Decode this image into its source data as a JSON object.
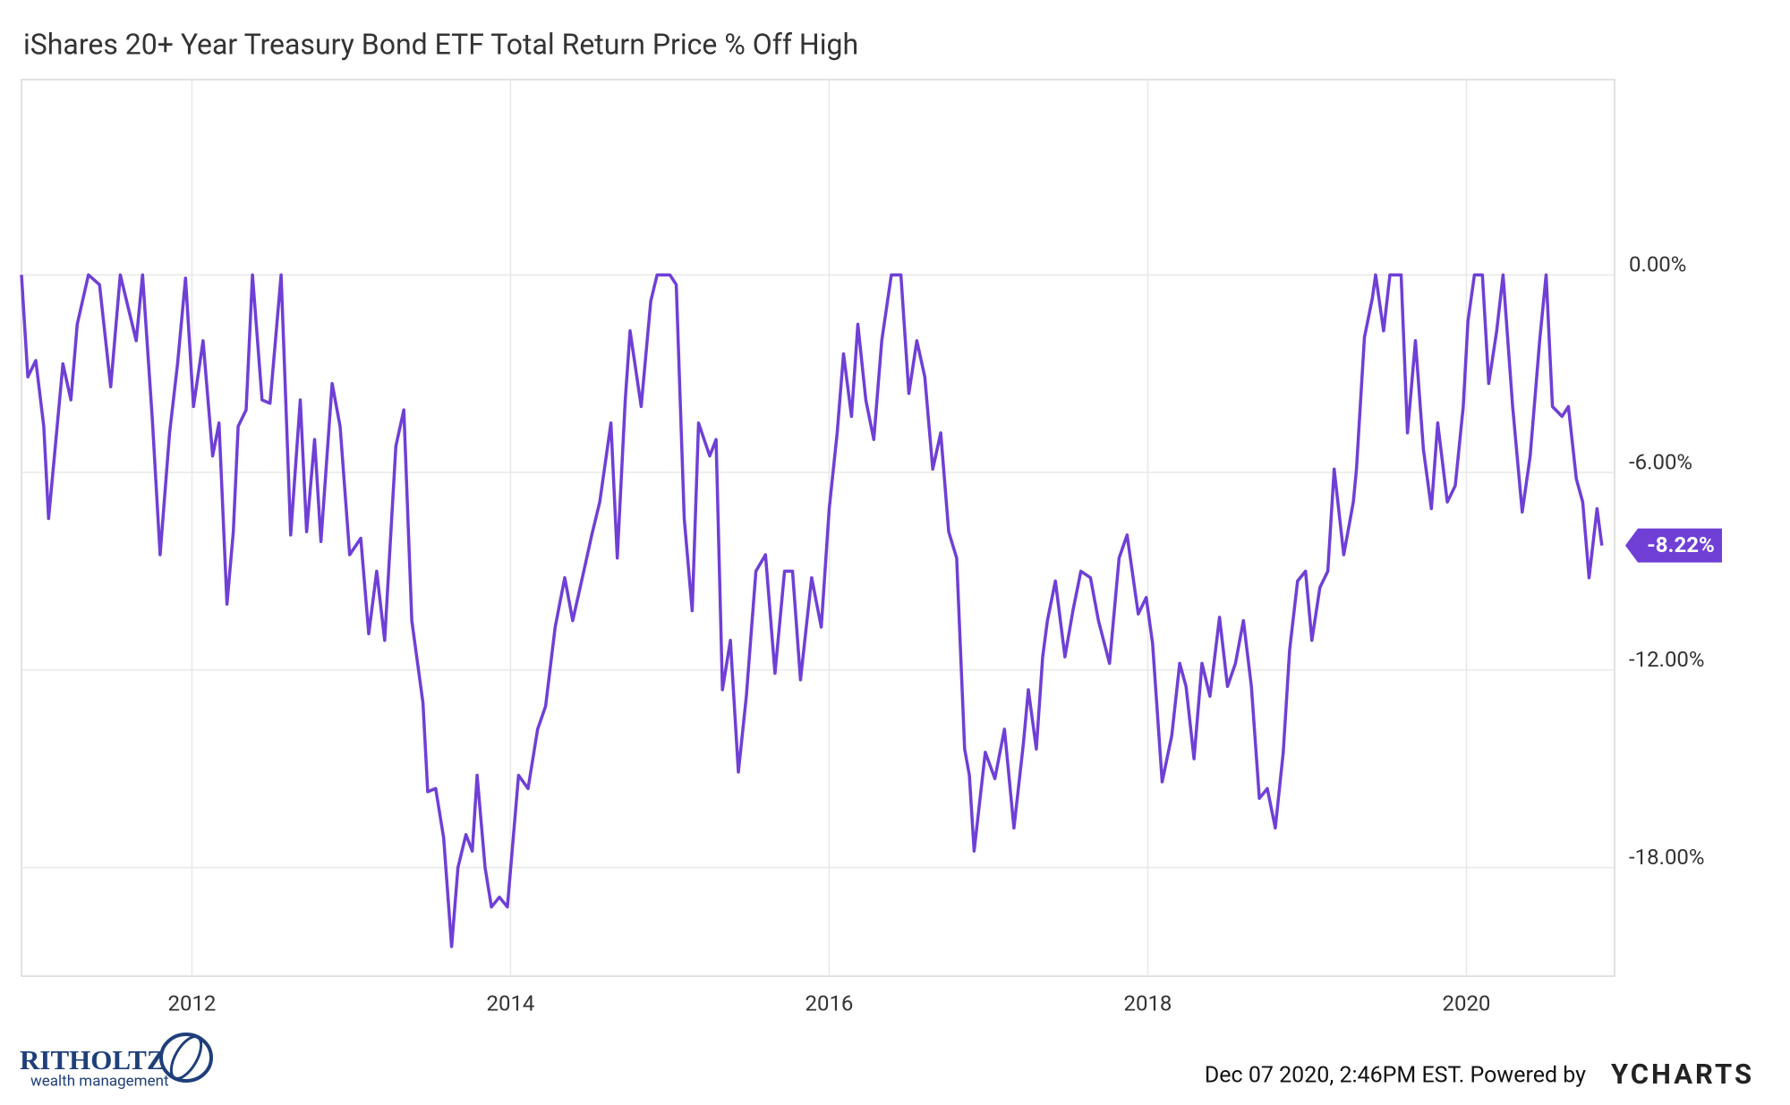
{
  "chart_data": {
    "type": "line",
    "title": "iShares 20+ Year Treasury Bond ETF Total Return Price % Off High",
    "xlim": [
      2010.93,
      2020.93
    ],
    "xticks": [
      2012,
      2014,
      2016,
      2018,
      2020
    ],
    "ylim": [
      -21.3,
      5.93
    ],
    "yticks": [
      {
        "value": 0,
        "label": "0.00%"
      },
      {
        "value": -6,
        "label": "-6.00%"
      },
      {
        "value": -12,
        "label": "-12.00%"
      },
      {
        "value": -18,
        "label": "-18.00%"
      }
    ],
    "grid": true,
    "end_label": "-8.22%",
    "x": [
      2010.93,
      2010.97,
      2011.02,
      2011.07,
      2011.1,
      2011.15,
      2011.19,
      2011.24,
      2011.28,
      2011.35,
      2011.42,
      2011.49,
      2011.55,
      2011.65,
      2011.69,
      2011.75,
      2011.8,
      2011.86,
      2011.91,
      2011.96,
      2012.01,
      2012.07,
      2012.13,
      2012.17,
      2012.22,
      2012.26,
      2012.29,
      2012.34,
      2012.38,
      2012.44,
      2012.49,
      2012.56,
      2012.62,
      2012.68,
      2012.72,
      2012.77,
      2012.81,
      2012.88,
      2012.93,
      2012.99,
      2013.06,
      2013.11,
      2013.16,
      2013.21,
      2013.28,
      2013.33,
      2013.38,
      2013.45,
      2013.48,
      2013.53,
      2013.58,
      2013.63,
      2013.67,
      2013.72,
      2013.76,
      2013.79,
      2013.84,
      2013.88,
      2013.93,
      2013.98,
      2014.05,
      2014.11,
      2014.17,
      2014.22,
      2014.28,
      2014.34,
      2014.39,
      2014.46,
      2014.51,
      2014.56,
      2014.63,
      2014.67,
      2014.72,
      2014.75,
      2014.82,
      2014.88,
      2014.92,
      2015.0,
      2015.04,
      2015.09,
      2015.14,
      2015.18,
      2015.25,
      2015.29,
      2015.33,
      2015.38,
      2015.43,
      2015.48,
      2015.54,
      2015.6,
      2015.66,
      2015.72,
      2015.77,
      2015.82,
      2015.89,
      2015.95,
      2016.0,
      2016.05,
      2016.09,
      2016.14,
      2016.18,
      2016.23,
      2016.28,
      2016.33,
      2016.39,
      2016.45,
      2016.5,
      2016.55,
      2016.6,
      2016.65,
      2016.7,
      2016.75,
      2016.8,
      2016.85,
      2016.88,
      2016.91,
      2016.98,
      2017.04,
      2017.1,
      2017.16,
      2017.22,
      2017.25,
      2017.3,
      2017.34,
      2017.37,
      2017.42,
      2017.48,
      2017.53,
      2017.58,
      2017.64,
      2017.69,
      2017.76,
      2017.82,
      2017.87,
      2017.94,
      2017.99,
      2018.03,
      2018.09,
      2018.15,
      2018.2,
      2018.24,
      2018.29,
      2018.34,
      2018.39,
      2018.45,
      2018.5,
      2018.55,
      2018.6,
      2018.65,
      2018.7,
      2018.75,
      2018.8,
      2018.85,
      2018.89,
      2018.94,
      2018.99,
      2019.03,
      2019.08,
      2019.13,
      2019.17,
      2019.23,
      2019.29,
      2019.31,
      2019.36,
      2019.41,
      2019.43,
      2019.48,
      2019.52,
      2019.59,
      2019.63,
      2019.68,
      2019.73,
      2019.78,
      2019.82,
      2019.88,
      2019.93,
      2019.98,
      2020.01,
      2020.05,
      2020.1,
      2020.14,
      2020.19,
      2020.23,
      2020.29,
      2020.35,
      2020.4,
      2020.46,
      2020.5,
      2020.54,
      2020.6,
      2020.64,
      2020.69,
      2020.73,
      2020.77,
      2020.82,
      2020.85
    ],
    "series": [
      {
        "name": "iShares 20+ Year Treasury Bond ETF Total Return Price % Off High",
        "color": "#6f3fd6",
        "values": [
          0,
          -3.1,
          -2.6,
          -4.6,
          -7.4,
          -4.8,
          -2.7,
          -3.8,
          -1.5,
          0,
          -0.3,
          -3.4,
          0,
          -2.0,
          0,
          -4.3,
          -8.5,
          -4.8,
          -2.7,
          -0.1,
          -4.0,
          -2.0,
          -5.5,
          -4.5,
          -10.0,
          -7.8,
          -4.6,
          -4.1,
          0,
          -3.8,
          -3.9,
          0,
          -7.9,
          -3.8,
          -7.8,
          -5.0,
          -8.1,
          -3.3,
          -4.6,
          -8.5,
          -8.0,
          -10.9,
          -9.0,
          -11.1,
          -5.2,
          -4.1,
          -10.5,
          -13.0,
          -15.7,
          -15.6,
          -17.1,
          -20.4,
          -18.0,
          -17.0,
          -17.5,
          -15.2,
          -18.0,
          -19.2,
          -18.9,
          -19.2,
          -15.2,
          -15.6,
          -13.8,
          -13.1,
          -10.7,
          -9.2,
          -10.5,
          -9.0,
          -7.9,
          -6.9,
          -4.5,
          -8.6,
          -3.8,
          -1.7,
          -4.0,
          -0.8,
          0,
          0,
          -0.3,
          -7.4,
          -10.2,
          -4.5,
          -5.5,
          -5.0,
          -12.6,
          -11.1,
          -15.1,
          -12.8,
          -9.0,
          -8.5,
          -12.1,
          -9.0,
          -9.0,
          -12.3,
          -9.2,
          -10.7,
          -7.1,
          -4.8,
          -2.4,
          -4.3,
          -1.5,
          -3.8,
          -5.0,
          -2.0,
          0,
          0,
          -3.6,
          -2.0,
          -3.1,
          -5.9,
          -4.8,
          -7.8,
          -8.6,
          -14.4,
          -15.2,
          -17.5,
          -14.5,
          -15.3,
          -13.8,
          -16.8,
          -14.2,
          -12.6,
          -14.4,
          -11.6,
          -10.5,
          -9.3,
          -11.6,
          -10.2,
          -9.0,
          -9.2,
          -10.5,
          -11.8,
          -8.6,
          -7.9,
          -10.3,
          -9.8,
          -11.2,
          -15.4,
          -14.0,
          -11.8,
          -12.5,
          -14.7,
          -11.8,
          -12.8,
          -10.4,
          -12.5,
          -11.8,
          -10.5,
          -12.5,
          -15.9,
          -15.6,
          -16.8,
          -14.5,
          -11.4,
          -9.3,
          -9.0,
          -11.1,
          -9.5,
          -9.0,
          -5.9,
          -8.5,
          -6.9,
          -5.9,
          -1.9,
          -0.7,
          0,
          -1.7,
          0,
          0,
          -4.8,
          -2.0,
          -5.3,
          -7.1,
          -4.5,
          -6.9,
          -6.4,
          -4.0,
          -1.4,
          0,
          0,
          -3.3,
          -1.7,
          0,
          -4.0,
          -7.2,
          -5.5,
          -2.0,
          0,
          -4.0,
          -4.3,
          -4.0,
          -6.2,
          -6.9,
          -9.2,
          -7.1,
          -8.22
        ]
      }
    ]
  },
  "footer": {
    "timestamp": "Dec 07 2020, 2:46PM EST. Powered by",
    "brand": "YCHARTS"
  },
  "logo": {
    "name": "RITHOLTZ",
    "tagline": "wealth management"
  }
}
